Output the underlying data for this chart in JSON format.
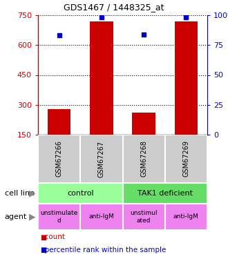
{
  "title": "GDS1467 / 1448325_at",
  "samples": [
    "GSM67266",
    "GSM67267",
    "GSM67268",
    "GSM67269"
  ],
  "counts": [
    280,
    720,
    260,
    720
  ],
  "percentiles": [
    83,
    98,
    84,
    98
  ],
  "ylim_left": [
    150,
    750
  ],
  "ylim_right": [
    0,
    100
  ],
  "yticks_left": [
    150,
    300,
    450,
    600,
    750
  ],
  "yticks_right": [
    0,
    25,
    50,
    75,
    100
  ],
  "cell_line_labels": [
    "control",
    "TAK1 deficient"
  ],
  "cell_line_spans": [
    [
      0,
      2
    ],
    [
      2,
      4
    ]
  ],
  "cell_line_colors": [
    "#99ff99",
    "#66dd66"
  ],
  "agent_labels": [
    "unstimulate\nd",
    "anti-IgM",
    "unstimul\nated",
    "anti-IgM"
  ],
  "agent_colors": [
    "#ee82ee",
    "#ee82ee",
    "#ee82ee",
    "#ee82ee"
  ],
  "bar_color": "#cc0000",
  "dot_color": "#0000cc",
  "sample_box_color": "#cccccc",
  "legend_count_color": "#cc0000",
  "legend_pct_color": "#0000cc",
  "left_axis_color": "#cc0000",
  "right_axis_color": "#0000cc"
}
